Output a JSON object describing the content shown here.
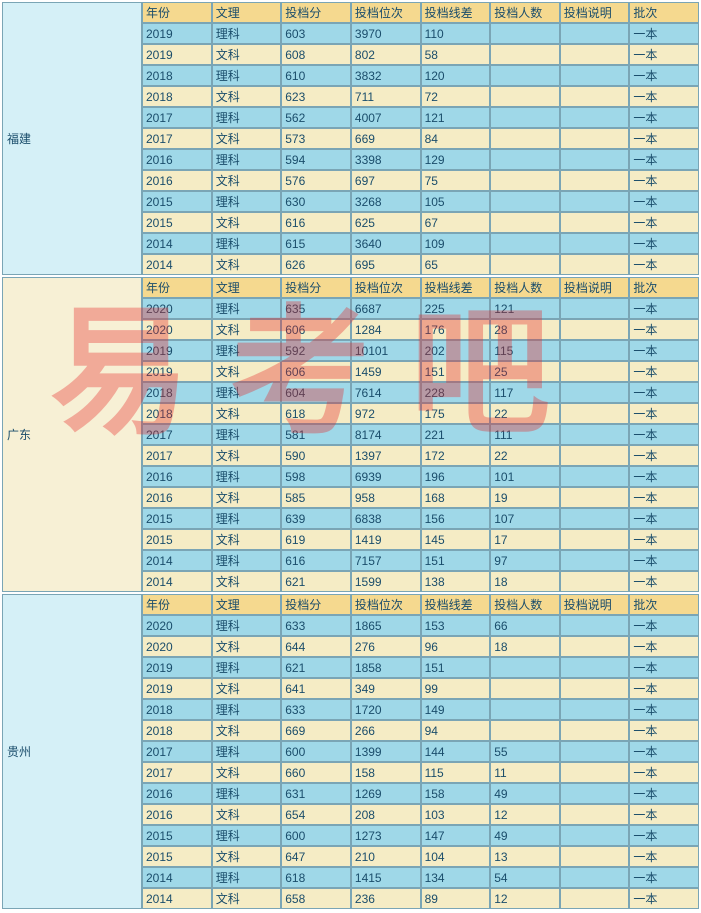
{
  "watermark": "易考吧",
  "columns": [
    "年份",
    "文理",
    "投档分",
    "投档位次",
    "投档线差",
    "投档人数",
    "投档说明",
    "批次"
  ],
  "colors": {
    "header_bg": "#f5d98f",
    "row_blue": "#9fd8e8",
    "row_tan": "#f5ecc5",
    "border": "#7aa5b5",
    "text": "#1a4d6b",
    "watermark": "rgba(230,40,40,0.35)",
    "province_blue": "#d5f0f7",
    "province_tan": "#f7f0d5"
  },
  "sections": [
    {
      "province": "福建",
      "province_bg": "blue",
      "rows": [
        {
          "c": [
            "2019",
            "理科",
            "603",
            "3970",
            "110",
            "",
            "",
            "一本"
          ],
          "cls": "blue"
        },
        {
          "c": [
            "2019",
            "文科",
            "608",
            "802",
            "58",
            "",
            "",
            "一本"
          ],
          "cls": "tan"
        },
        {
          "c": [
            "2018",
            "理科",
            "610",
            "3832",
            "120",
            "",
            "",
            "一本"
          ],
          "cls": "blue"
        },
        {
          "c": [
            "2018",
            "文科",
            "623",
            "711",
            "72",
            "",
            "",
            "一本"
          ],
          "cls": "tan"
        },
        {
          "c": [
            "2017",
            "理科",
            "562",
            "4007",
            "121",
            "",
            "",
            "一本"
          ],
          "cls": "blue"
        },
        {
          "c": [
            "2017",
            "文科",
            "573",
            "669",
            "84",
            "",
            "",
            "一本"
          ],
          "cls": "tan"
        },
        {
          "c": [
            "2016",
            "理科",
            "594",
            "3398",
            "129",
            "",
            "",
            "一本"
          ],
          "cls": "blue"
        },
        {
          "c": [
            "2016",
            "文科",
            "576",
            "697",
            "75",
            "",
            "",
            "一本"
          ],
          "cls": "tan"
        },
        {
          "c": [
            "2015",
            "理科",
            "630",
            "3268",
            "105",
            "",
            "",
            "一本"
          ],
          "cls": "blue"
        },
        {
          "c": [
            "2015",
            "文科",
            "616",
            "625",
            "67",
            "",
            "",
            "一本"
          ],
          "cls": "tan"
        },
        {
          "c": [
            "2014",
            "理科",
            "615",
            "3640",
            "109",
            "",
            "",
            "一本"
          ],
          "cls": "blue"
        },
        {
          "c": [
            "2014",
            "文科",
            "626",
            "695",
            "65",
            "",
            "",
            "一本"
          ],
          "cls": "tan"
        }
      ]
    },
    {
      "province": "广东",
      "province_bg": "tan",
      "rows": [
        {
          "c": [
            "2020",
            "理科",
            "635",
            "6687",
            "225",
            "121",
            "",
            "一本"
          ],
          "cls": "blue"
        },
        {
          "c": [
            "2020",
            "文科",
            "606",
            "1284",
            "176",
            "28",
            "",
            "一本"
          ],
          "cls": "tan"
        },
        {
          "c": [
            "2019",
            "理科",
            "592",
            "10101",
            "202",
            "115",
            "",
            "一本"
          ],
          "cls": "blue"
        },
        {
          "c": [
            "2019",
            "文科",
            "606",
            "1459",
            "151",
            "25",
            "",
            "一本"
          ],
          "cls": "tan"
        },
        {
          "c": [
            "2018",
            "理科",
            "604",
            "7614",
            "228",
            "117",
            "",
            "一本"
          ],
          "cls": "blue"
        },
        {
          "c": [
            "2018",
            "文科",
            "618",
            "972",
            "175",
            "22",
            "",
            "一本"
          ],
          "cls": "tan"
        },
        {
          "c": [
            "2017",
            "理科",
            "581",
            "8174",
            "221",
            "111",
            "",
            "一本"
          ],
          "cls": "blue"
        },
        {
          "c": [
            "2017",
            "文科",
            "590",
            "1397",
            "172",
            "22",
            "",
            "一本"
          ],
          "cls": "tan"
        },
        {
          "c": [
            "2016",
            "理科",
            "598",
            "6939",
            "196",
            "101",
            "",
            "一本"
          ],
          "cls": "blue"
        },
        {
          "c": [
            "2016",
            "文科",
            "585",
            "958",
            "168",
            "19",
            "",
            "一本"
          ],
          "cls": "tan"
        },
        {
          "c": [
            "2015",
            "理科",
            "639",
            "6838",
            "156",
            "107",
            "",
            "一本"
          ],
          "cls": "blue"
        },
        {
          "c": [
            "2015",
            "文科",
            "619",
            "1419",
            "145",
            "17",
            "",
            "一本"
          ],
          "cls": "tan"
        },
        {
          "c": [
            "2014",
            "理科",
            "616",
            "7157",
            "151",
            "97",
            "",
            "一本"
          ],
          "cls": "blue"
        },
        {
          "c": [
            "2014",
            "文科",
            "621",
            "1599",
            "138",
            "18",
            "",
            "一本"
          ],
          "cls": "tan"
        }
      ]
    },
    {
      "province": "贵州",
      "province_bg": "blue",
      "rows": [
        {
          "c": [
            "2020",
            "理科",
            "633",
            "1865",
            "153",
            "66",
            "",
            "一本"
          ],
          "cls": "blue"
        },
        {
          "c": [
            "2020",
            "文科",
            "644",
            "276",
            "96",
            "18",
            "",
            "一本"
          ],
          "cls": "tan"
        },
        {
          "c": [
            "2019",
            "理科",
            "621",
            "1858",
            "151",
            "",
            "",
            "一本"
          ],
          "cls": "blue"
        },
        {
          "c": [
            "2019",
            "文科",
            "641",
            "349",
            "99",
            "",
            "",
            "一本"
          ],
          "cls": "tan"
        },
        {
          "c": [
            "2018",
            "理科",
            "633",
            "1720",
            "149",
            "",
            "",
            "一本"
          ],
          "cls": "blue"
        },
        {
          "c": [
            "2018",
            "文科",
            "669",
            "266",
            "94",
            "",
            "",
            "一本"
          ],
          "cls": "tan"
        },
        {
          "c": [
            "2017",
            "理科",
            "600",
            "1399",
            "144",
            "55",
            "",
            "一本"
          ],
          "cls": "blue"
        },
        {
          "c": [
            "2017",
            "文科",
            "660",
            "158",
            "115",
            "11",
            "",
            "一本"
          ],
          "cls": "tan"
        },
        {
          "c": [
            "2016",
            "理科",
            "631",
            "1269",
            "158",
            "49",
            "",
            "一本"
          ],
          "cls": "blue"
        },
        {
          "c": [
            "2016",
            "文科",
            "654",
            "208",
            "103",
            "12",
            "",
            "一本"
          ],
          "cls": "tan"
        },
        {
          "c": [
            "2015",
            "理科",
            "600",
            "1273",
            "147",
            "49",
            "",
            "一本"
          ],
          "cls": "blue"
        },
        {
          "c": [
            "2015",
            "文科",
            "647",
            "210",
            "104",
            "13",
            "",
            "一本"
          ],
          "cls": "tan"
        },
        {
          "c": [
            "2014",
            "理科",
            "618",
            "1415",
            "134",
            "54",
            "",
            "一本"
          ],
          "cls": "blue"
        },
        {
          "c": [
            "2014",
            "文科",
            "658",
            "236",
            "89",
            "12",
            "",
            "一本"
          ],
          "cls": "tan"
        }
      ]
    }
  ]
}
